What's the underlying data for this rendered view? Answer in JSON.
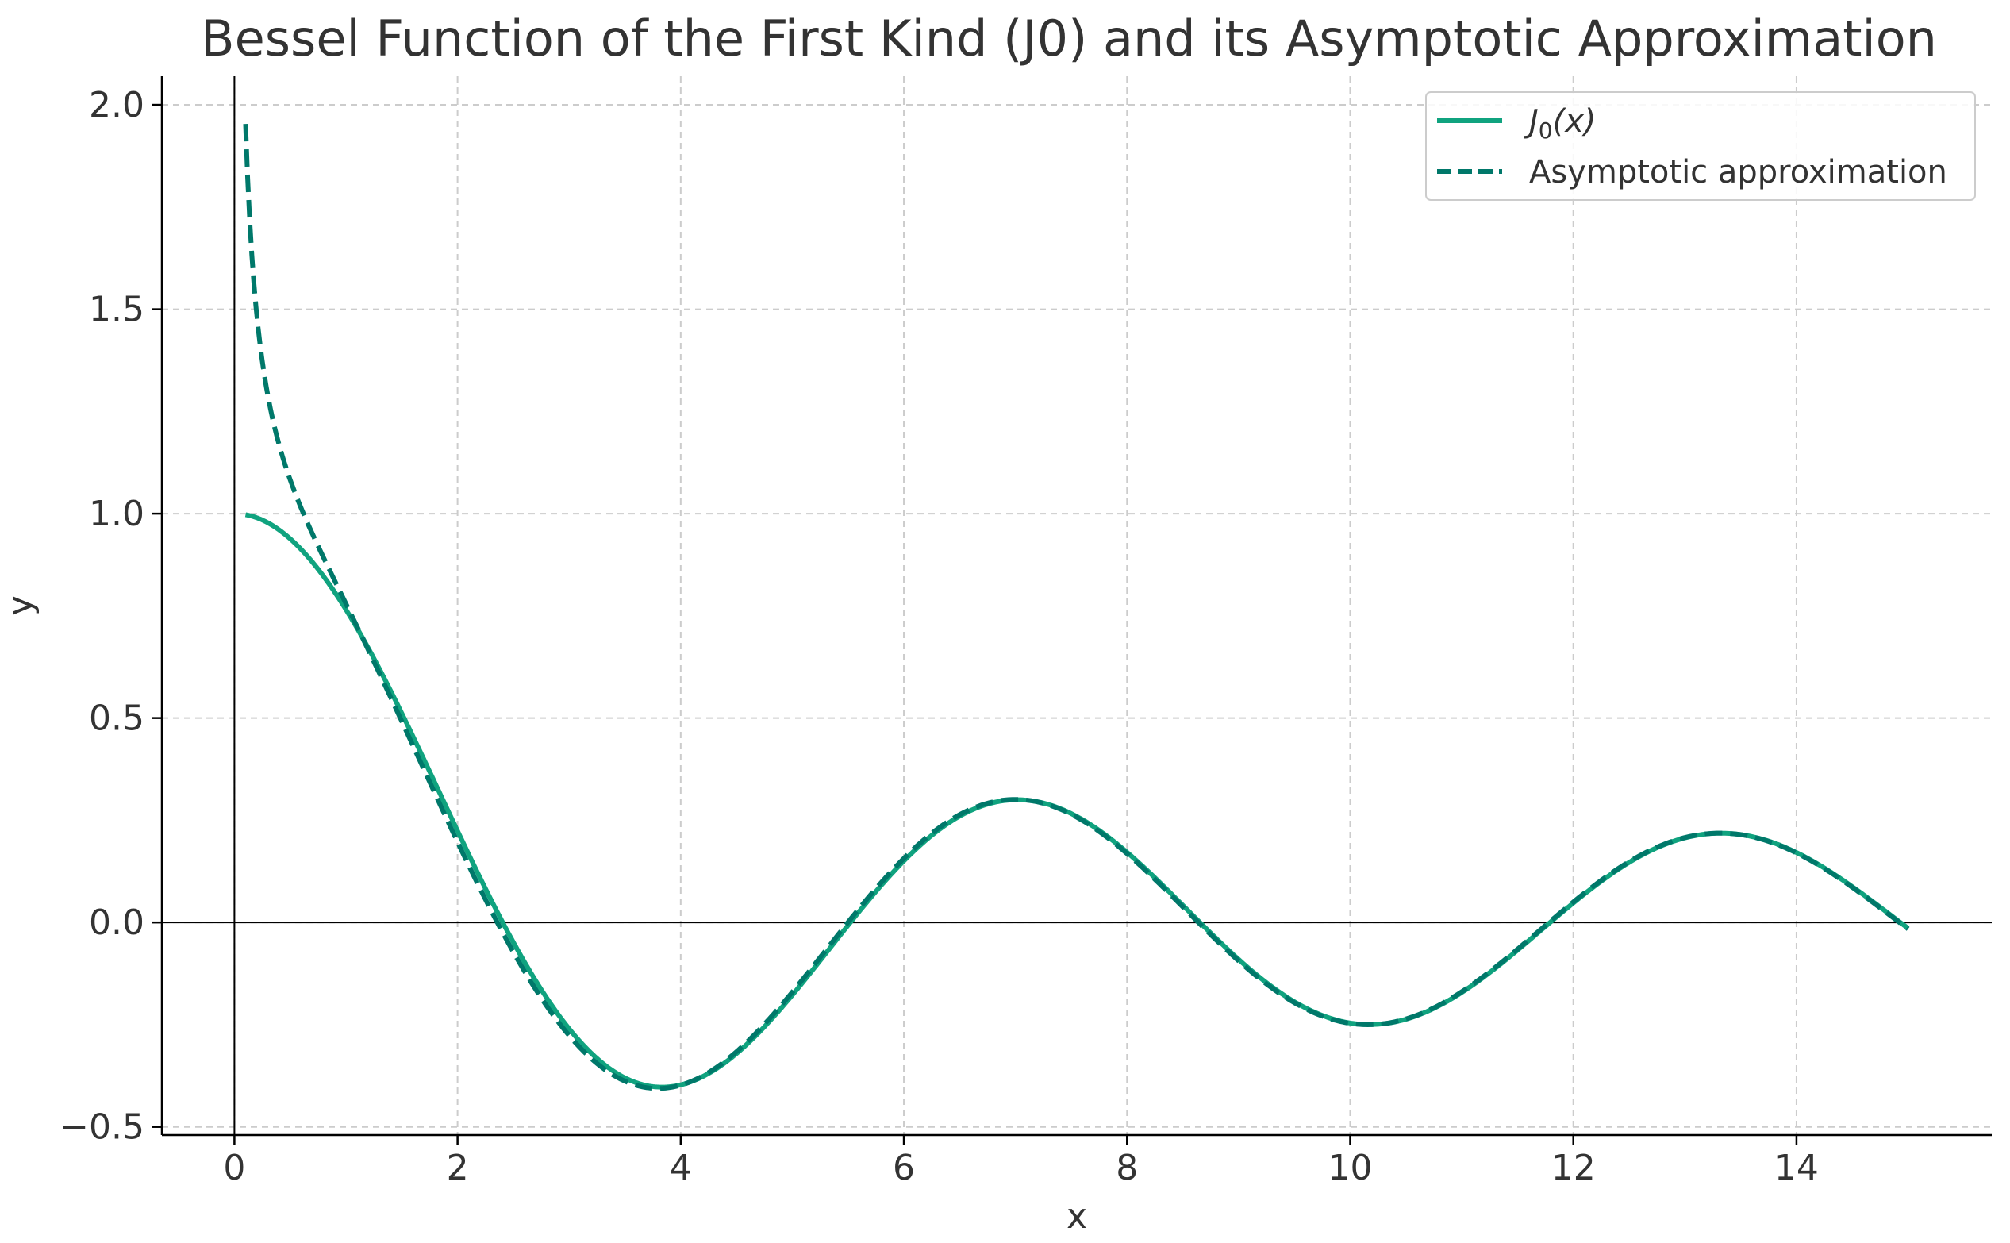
{
  "chart_data": {
    "type": "line",
    "title": "Bessel Function of the First Kind (J0) and its Asymptotic Approximation",
    "xlabel": "x",
    "ylabel": "y",
    "xlim": [
      -0.65,
      15.75
    ],
    "ylim": [
      -0.52,
      2.07
    ],
    "x_ticks": [
      0,
      2,
      4,
      6,
      8,
      10,
      12,
      14
    ],
    "y_ticks": [
      -0.5,
      0.0,
      0.5,
      1.0,
      1.5,
      2.0
    ],
    "x_tick_labels": [
      "0",
      "2",
      "4",
      "6",
      "8",
      "10",
      "12",
      "14"
    ],
    "y_tick_labels": [
      "−0.5",
      "0.0",
      "0.5",
      "1.0",
      "1.5",
      "2.0"
    ],
    "grid": true,
    "grid_style": "dashed",
    "reference_lines": {
      "y0": true,
      "x0": true
    },
    "legend_position": "top-right",
    "x_domain": [
      0.1,
      15
    ],
    "series": [
      {
        "name": "J0(x)",
        "legend_base": "J",
        "legend_sub": "0",
        "legend_tail": "(x)",
        "function": "bessel_j0",
        "style": "solid",
        "color": "#10a37f"
      },
      {
        "name": "Asymptotic approximation",
        "legend_base": "Asymptotic approximation",
        "legend_sub": "",
        "legend_tail": "",
        "function": "sqrt(2/(pi x)) cos(x - pi/4)",
        "style": "dashed",
        "color": "#00786a"
      }
    ]
  }
}
